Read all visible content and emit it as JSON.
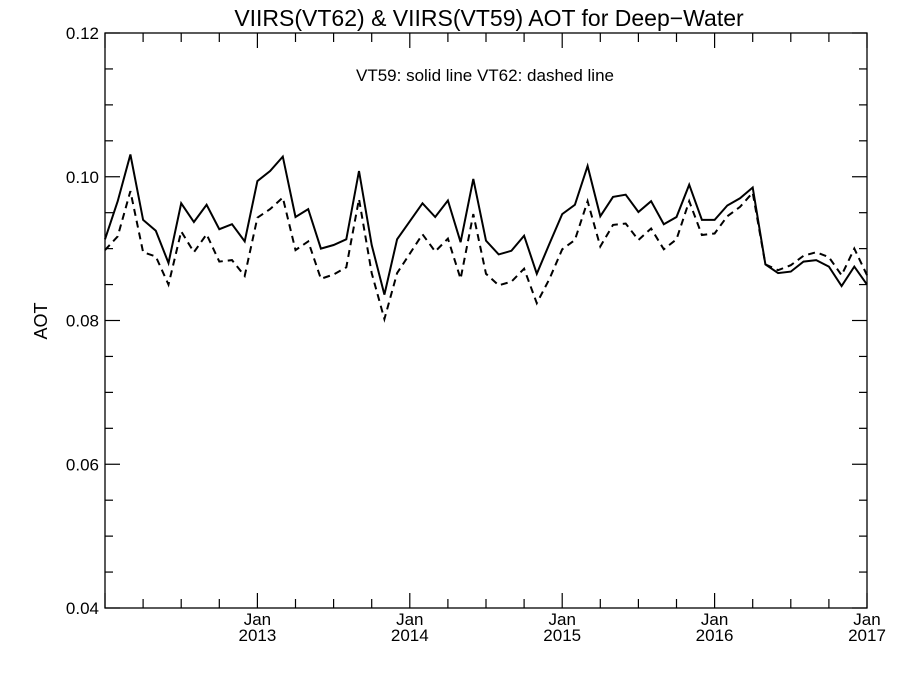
{
  "chart_data": {
    "type": "line",
    "title": "VIIRS(VT62) & VIIRS(VT59)  AOT for Deep−Water",
    "annotation": "VT59: solid line   VT62: dashed line",
    "xlabel": "",
    "ylabel": "AOT",
    "ylim": [
      0.04,
      0.12
    ],
    "xlim": [
      "2012-01",
      "2017-01"
    ],
    "y_ticks": [
      "0.04",
      "0.06",
      "0.08",
      "0.10",
      "0.12"
    ],
    "x_ticks": [
      {
        "month": "Jan",
        "year": "2013"
      },
      {
        "month": "Jan",
        "year": "2014"
      },
      {
        "month": "Jan",
        "year": "2015"
      },
      {
        "month": "Jan",
        "year": "2016"
      },
      {
        "month": "Jan",
        "year": "2017"
      }
    ],
    "grid": false,
    "x": [
      "2012-01",
      "2012-02",
      "2012-03",
      "2012-04",
      "2012-05",
      "2012-06",
      "2012-07",
      "2012-08",
      "2012-09",
      "2012-10",
      "2012-11",
      "2012-12",
      "2013-01",
      "2013-02",
      "2013-03",
      "2013-04",
      "2013-05",
      "2013-06",
      "2013-07",
      "2013-08",
      "2013-09",
      "2013-10",
      "2013-11",
      "2013-12",
      "2014-01",
      "2014-02",
      "2014-03",
      "2014-04",
      "2014-05",
      "2014-06",
      "2014-07",
      "2014-08",
      "2014-09",
      "2014-10",
      "2014-11",
      "2014-12",
      "2015-01",
      "2015-02",
      "2015-03",
      "2015-04",
      "2015-05",
      "2015-06",
      "2015-07",
      "2015-08",
      "2015-09",
      "2015-10",
      "2015-11",
      "2015-12",
      "2016-01",
      "2016-02",
      "2016-03",
      "2016-04",
      "2016-05",
      "2016-06",
      "2016-07",
      "2016-08",
      "2016-09",
      "2016-10",
      "2016-11",
      "2016-12",
      "2017-01"
    ],
    "series": [
      {
        "name": "VT59",
        "style": "solid",
        "color": "#000000",
        "values": [
          0.0913,
          0.0966,
          0.1031,
          0.094,
          0.0925,
          0.088,
          0.0963,
          0.0937,
          0.0961,
          0.0927,
          0.0934,
          0.091,
          0.0994,
          0.1008,
          0.1028,
          0.0944,
          0.0955,
          0.09,
          0.0905,
          0.0913,
          0.1008,
          0.0905,
          0.0836,
          0.0913,
          0.0938,
          0.0963,
          0.0944,
          0.0967,
          0.0909,
          0.0997,
          0.0911,
          0.0892,
          0.0897,
          0.0918,
          0.0865,
          0.0907,
          0.0948,
          0.0961,
          0.1015,
          0.0945,
          0.0972,
          0.0975,
          0.0951,
          0.0966,
          0.0934,
          0.0944,
          0.0989,
          0.094,
          0.094,
          0.096,
          0.097,
          0.0985,
          0.0878,
          0.0866,
          0.0868,
          0.0882,
          0.0884,
          0.0875,
          0.0848,
          0.0875,
          0.085
        ]
      },
      {
        "name": "VT62",
        "style": "dashed",
        "color": "#000000",
        "values": [
          0.0898,
          0.0917,
          0.098,
          0.0895,
          0.0889,
          0.085,
          0.0924,
          0.0895,
          0.092,
          0.0882,
          0.0884,
          0.0862,
          0.0943,
          0.0955,
          0.0971,
          0.0898,
          0.091,
          0.0858,
          0.0864,
          0.0874,
          0.0969,
          0.0866,
          0.0802,
          0.0866,
          0.0893,
          0.092,
          0.0896,
          0.0914,
          0.0858,
          0.0948,
          0.0865,
          0.0849,
          0.0854,
          0.0872,
          0.0824,
          0.0858,
          0.0899,
          0.0912,
          0.0966,
          0.0903,
          0.0933,
          0.0935,
          0.0912,
          0.0928,
          0.0899,
          0.0913,
          0.0966,
          0.0919,
          0.0921,
          0.0945,
          0.0958,
          0.0978,
          0.0878,
          0.087,
          0.0877,
          0.089,
          0.0895,
          0.0888,
          0.0863,
          0.09,
          0.0863
        ]
      }
    ]
  }
}
